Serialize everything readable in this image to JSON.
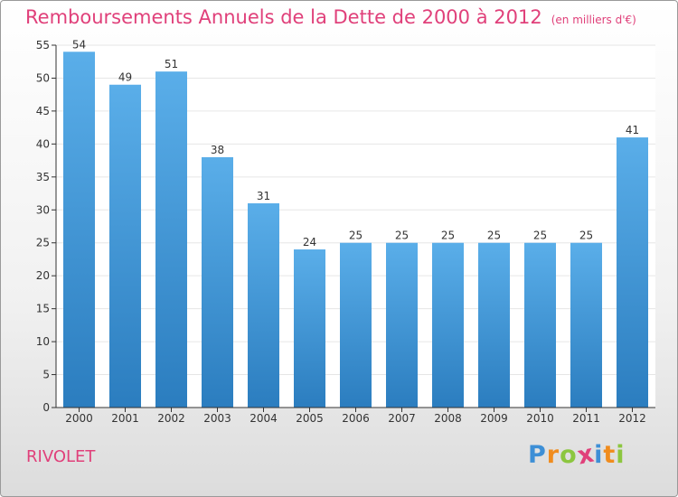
{
  "title": "Remboursements Annuels de la Dette de 2000 à 2012",
  "unit": "(en milliers d'€)",
  "commune": "RIVOLET",
  "brand": {
    "letters": [
      "P",
      "r",
      "o",
      "x",
      "i",
      "t",
      "i"
    ],
    "colors": [
      "#3d8fd6",
      "#f08c1e",
      "#8cc63f",
      "#e0407a",
      "#3d8fd6",
      "#f08c1e",
      "#8cc63f"
    ]
  },
  "colors": {
    "accent": "#e0407a",
    "bar_top": "#5aaee9",
    "bar_bottom": "#2b7dbf",
    "axis": "#333333",
    "grid": "#e6e6e6"
  },
  "chart_data": {
    "type": "bar",
    "categories": [
      "2000",
      "2001",
      "2002",
      "2003",
      "2004",
      "2005",
      "2006",
      "2007",
      "2008",
      "2009",
      "2010",
      "2011",
      "2012"
    ],
    "values": [
      54,
      49,
      51,
      38,
      31,
      24,
      25,
      25,
      25,
      25,
      25,
      25,
      41
    ],
    "data_labels": [
      "54",
      "49",
      "51",
      "38",
      "31",
      "24",
      "25",
      "25",
      "25",
      "25",
      "25",
      "25",
      "41"
    ],
    "ylim": [
      0,
      55
    ],
    "yticks": [
      "0",
      "5",
      "10",
      "15",
      "20",
      "25",
      "30",
      "35",
      "40",
      "45",
      "50",
      "55"
    ],
    "xlabel": "",
    "ylabel": "",
    "grid": true,
    "legend": false
  }
}
